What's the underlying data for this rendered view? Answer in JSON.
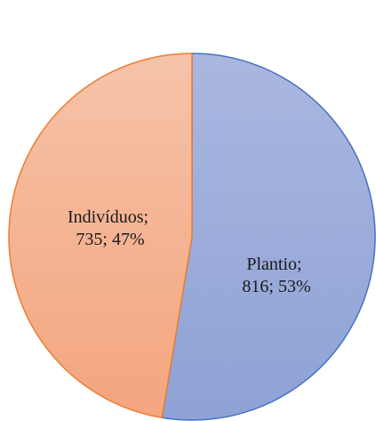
{
  "chart_data": {
    "type": "pie",
    "title": "",
    "slices": [
      {
        "name": "Plantio",
        "value": 816,
        "percent": "53%",
        "label_line1": "Plantio;",
        "label_line2": "816; 53%",
        "fill_top": "#aab7df",
        "fill_bottom": "#8ea2d6",
        "stroke": "#4472c4"
      },
      {
        "name": "Indivíduos",
        "value": 735,
        "percent": "47%",
        "label_line1": "Indivíduos;",
        "label_line2": "735; 47%",
        "fill_top": "#f6c3a9",
        "fill_bottom": "#f3a57e",
        "stroke": "#ed7d31"
      }
    ],
    "start_angle": "12 o'clock",
    "direction": "clockwise",
    "legend": "none",
    "grid": false
  }
}
